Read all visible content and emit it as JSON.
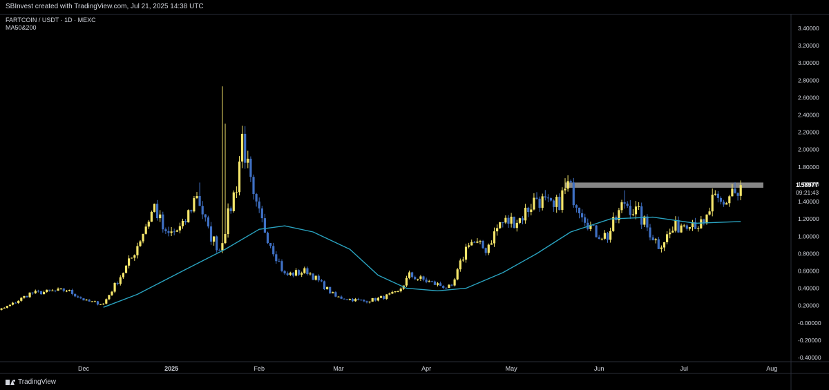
{
  "header": {
    "credit": "SBInvest created with TradingView.com, Jul 21, 2025 14:38 UTC"
  },
  "legend": {
    "symbol": "FARTCOIN / USDT · 1D · MEXC",
    "indicator": "MA50&200"
  },
  "footer": {
    "brand": "TradingView"
  },
  "colors": {
    "background": "#000000",
    "up": "#f5e66b",
    "down": "#3f70c4",
    "ma": "#2aa3c0",
    "resistance": "#9e9e9e"
  },
  "chart_data": {
    "type": "candlestick",
    "timeframe": "1D",
    "y_axis": {
      "min": -0.4,
      "max": 3.4,
      "ticks": [
        "3.40000",
        "3.20000",
        "3.00000",
        "2.80000",
        "2.60000",
        "2.40000",
        "2.20000",
        "2.00000",
        "1.80000",
        "1.60000",
        "1.40000",
        "1.20000",
        "1.00000",
        "0.80000",
        "0.60000",
        "0.40000",
        "0.20000",
        "-0.00000",
        "-0.20000",
        "-0.40000"
      ]
    },
    "x_axis": {
      "labels": [
        {
          "label": "Dec",
          "date": "2024-12-01"
        },
        {
          "label": "2025",
          "date": "2025-01-01"
        },
        {
          "label": "Feb",
          "date": "2025-02-01"
        },
        {
          "label": "Mar",
          "date": "2025-03-01"
        },
        {
          "label": "Apr",
          "date": "2025-04-01"
        },
        {
          "label": "May",
          "date": "2025-05-01"
        },
        {
          "label": "Jun",
          "date": "2025-06-01"
        },
        {
          "label": "Jul",
          "date": "2025-07-01"
        },
        {
          "label": "Aug",
          "date": "2025-08-01"
        }
      ]
    },
    "current_price": {
      "value": "1.58977",
      "countdown": "09:21:43",
      "color": "#f5e66b"
    },
    "resistance_zone": {
      "y_low": 1.56,
      "y_high": 1.62,
      "from": "2025-05-20",
      "to": "2025-07-29"
    },
    "close_waypoints": [
      {
        "date": "2024-10-25",
        "close": 0.03
      },
      {
        "date": "2024-11-06",
        "close": 0.22
      },
      {
        "date": "2024-11-12",
        "close": 0.34
      },
      {
        "date": "2024-11-25",
        "close": 0.38
      },
      {
        "date": "2024-12-02",
        "close": 0.25
      },
      {
        "date": "2024-12-08",
        "close": 0.22
      },
      {
        "date": "2024-12-18",
        "close": 0.75
      },
      {
        "date": "2024-12-26",
        "close": 1.35
      },
      {
        "date": "2024-12-30",
        "close": 1.0
      },
      {
        "date": "2025-01-05",
        "close": 1.1
      },
      {
        "date": "2025-01-10",
        "close": 1.5
      },
      {
        "date": "2025-01-14",
        "close": 1.05
      },
      {
        "date": "2025-01-18",
        "close": 0.85
      },
      {
        "date": "2025-01-24",
        "close": 1.6
      },
      {
        "date": "2025-01-26",
        "close": 2.15
      },
      {
        "date": "2025-01-30",
        "close": 1.4
      },
      {
        "date": "2025-02-04",
        "close": 1.0
      },
      {
        "date": "2025-02-10",
        "close": 0.55
      },
      {
        "date": "2025-02-18",
        "close": 0.6
      },
      {
        "date": "2025-02-28",
        "close": 0.3
      },
      {
        "date": "2025-03-10",
        "close": 0.25
      },
      {
        "date": "2025-03-15",
        "close": 0.28
      },
      {
        "date": "2025-03-22",
        "close": 0.35
      },
      {
        "date": "2025-03-26",
        "close": 0.55
      },
      {
        "date": "2025-04-04",
        "close": 0.45
      },
      {
        "date": "2025-04-10",
        "close": 0.4
      },
      {
        "date": "2025-04-16",
        "close": 0.95
      },
      {
        "date": "2025-04-22",
        "close": 0.85
      },
      {
        "date": "2025-04-27",
        "close": 1.15
      },
      {
        "date": "2025-05-04",
        "close": 1.2
      },
      {
        "date": "2025-05-10",
        "close": 1.45
      },
      {
        "date": "2025-05-16",
        "close": 1.3
      },
      {
        "date": "2025-05-21",
        "close": 1.58
      },
      {
        "date": "2025-05-26",
        "close": 1.3
      },
      {
        "date": "2025-05-30",
        "close": 1.05
      },
      {
        "date": "2025-06-04",
        "close": 1.0
      },
      {
        "date": "2025-06-10",
        "close": 1.4
      },
      {
        "date": "2025-06-15",
        "close": 1.25
      },
      {
        "date": "2025-06-22",
        "close": 0.9
      },
      {
        "date": "2025-06-28",
        "close": 1.1
      },
      {
        "date": "2025-07-03",
        "close": 1.2
      },
      {
        "date": "2025-07-08",
        "close": 1.1
      },
      {
        "date": "2025-07-11",
        "close": 1.4
      },
      {
        "date": "2025-07-15",
        "close": 1.35
      },
      {
        "date": "2025-07-18",
        "close": 1.55
      },
      {
        "date": "2025-07-20",
        "close": 1.45
      },
      {
        "date": "2025-07-21",
        "close": 1.59
      }
    ],
    "wick_spikes": [
      {
        "date": "2025-01-19",
        "high": 2.73
      },
      {
        "date": "2025-01-20",
        "high": 2.3
      },
      {
        "date": "2025-01-11",
        "high": 1.62
      },
      {
        "date": "2025-05-20",
        "high": 1.67
      },
      {
        "date": "2025-06-10",
        "high": 1.53
      }
    ],
    "ma50": {
      "name": "MA50",
      "points": [
        {
          "date": "2024-12-08",
          "value": 0.18
        },
        {
          "date": "2024-12-20",
          "value": 0.33
        },
        {
          "date": "2025-01-05",
          "value": 0.6
        },
        {
          "date": "2025-01-20",
          "value": 0.85
        },
        {
          "date": "2025-02-01",
          "value": 1.08
        },
        {
          "date": "2025-02-10",
          "value": 1.12
        },
        {
          "date": "2025-02-20",
          "value": 1.05
        },
        {
          "date": "2025-03-05",
          "value": 0.85
        },
        {
          "date": "2025-03-15",
          "value": 0.55
        },
        {
          "date": "2025-03-25",
          "value": 0.4
        },
        {
          "date": "2025-04-05",
          "value": 0.37
        },
        {
          "date": "2025-04-15",
          "value": 0.4
        },
        {
          "date": "2025-04-28",
          "value": 0.58
        },
        {
          "date": "2025-05-10",
          "value": 0.8
        },
        {
          "date": "2025-05-22",
          "value": 1.05
        },
        {
          "date": "2025-06-05",
          "value": 1.2
        },
        {
          "date": "2025-06-20",
          "value": 1.22
        },
        {
          "date": "2025-07-05",
          "value": 1.15
        },
        {
          "date": "2025-07-21",
          "value": 1.17
        }
      ]
    }
  }
}
